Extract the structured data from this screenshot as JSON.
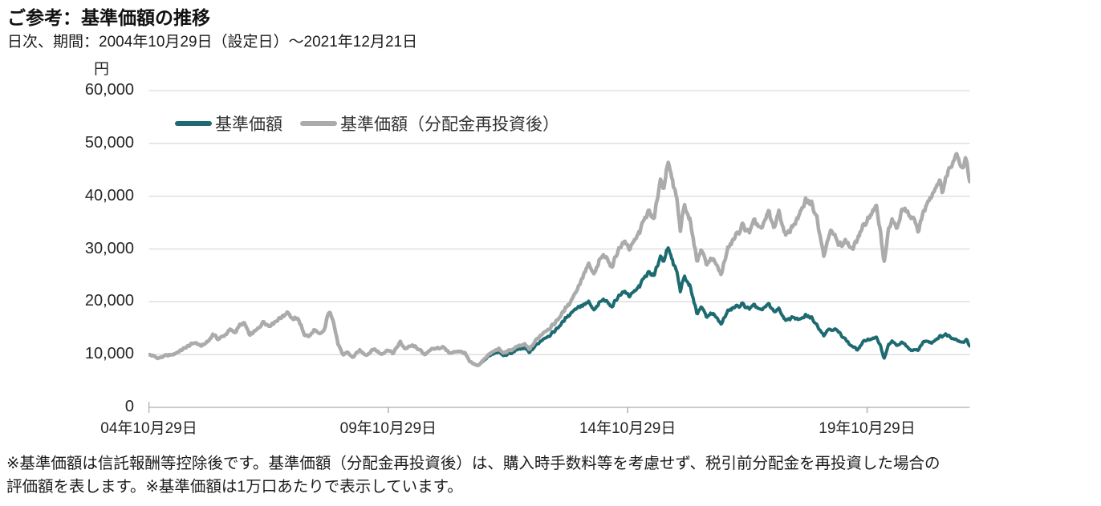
{
  "header": {
    "title": "ご参考：基準価額の推移",
    "subtitle": "日次、期間：2004年10月29日（設定日）～2021年12月21日"
  },
  "footnote": {
    "lines": [
      "※基準価額は信託報酬等控除後です。基準価額（分配金再投資後）は、購入時手数料等を考慮せず、税引前分配金を再投資した場合の",
      "評価額を表します。※基準価額は1万口あたりで表示しています。"
    ]
  },
  "chart_data": {
    "type": "line",
    "title": "ご参考：基準価額の推移",
    "subtitle": "日次、期間：2004年10月29日（設定日）～2021年12月21日",
    "unit_label": "円",
    "xlabel": "",
    "ylabel": "円",
    "ylim": [
      0,
      60000
    ],
    "y_ticks": [
      0,
      10000,
      20000,
      30000,
      40000,
      50000,
      60000
    ],
    "x_range_years_from_2004_10_29": [
      0,
      17.145
    ],
    "x_tick_positions_years": [
      0,
      5,
      10,
      15
    ],
    "x_tick_labels": [
      "04年10月29日",
      "09年10月29日",
      "14年10月29日",
      "19年10月29日"
    ],
    "grid": "horizontal",
    "legend_position": "inside-top-left",
    "colors": {
      "grid": "#dcdcdc",
      "axis": "#cccccc",
      "tick": "#b0b0b0"
    },
    "series": [
      {
        "name": "基準価額",
        "color": "#1d6b71",
        "stroke_width": 4,
        "keypoints": [
          [
            0,
            10000
          ],
          [
            0.1,
            9700
          ],
          [
            0.2,
            9300
          ],
          [
            0.35,
            9800
          ],
          [
            0.5,
            10000
          ],
          [
            0.65,
            10700
          ],
          [
            0.8,
            11500
          ],
          [
            0.96,
            12300
          ],
          [
            1.1,
            11600
          ],
          [
            1.25,
            12600
          ],
          [
            1.34,
            13900
          ],
          [
            1.45,
            12900
          ],
          [
            1.6,
            13800
          ],
          [
            1.7,
            14700
          ],
          [
            1.8,
            14200
          ],
          [
            1.9,
            15600
          ],
          [
            2.0,
            15900
          ],
          [
            2.1,
            13700
          ],
          [
            2.25,
            14600
          ],
          [
            2.4,
            16300
          ],
          [
            2.5,
            15400
          ],
          [
            2.6,
            16000
          ],
          [
            2.75,
            17000
          ],
          [
            2.82,
            17400
          ],
          [
            2.9,
            18200
          ],
          [
            3.0,
            16500
          ],
          [
            3.1,
            17100
          ],
          [
            3.25,
            13800
          ],
          [
            3.35,
            13400
          ],
          [
            3.45,
            14600
          ],
          [
            3.55,
            13900
          ],
          [
            3.65,
            14300
          ],
          [
            3.72,
            16800
          ],
          [
            3.78,
            18500
          ],
          [
            3.85,
            16400
          ],
          [
            3.95,
            12000
          ],
          [
            4.05,
            9900
          ],
          [
            4.15,
            10500
          ],
          [
            4.25,
            9400
          ],
          [
            4.4,
            10800
          ],
          [
            4.55,
            9900
          ],
          [
            4.7,
            11100
          ],
          [
            4.85,
            10100
          ],
          [
            5.0,
            10900
          ],
          [
            5.1,
            10200
          ],
          [
            5.25,
            12400
          ],
          [
            5.35,
            11100
          ],
          [
            5.5,
            11700
          ],
          [
            5.65,
            11000
          ],
          [
            5.75,
            9900
          ],
          [
            5.85,
            10800
          ],
          [
            6.0,
            11200
          ],
          [
            6.15,
            11400
          ],
          [
            6.3,
            10200
          ],
          [
            6.45,
            10700
          ],
          [
            6.6,
            10300
          ],
          [
            6.7,
            8600
          ],
          [
            6.8,
            8100
          ],
          [
            6.9,
            8000
          ],
          [
            7.0,
            9000
          ],
          [
            7.1,
            9700
          ],
          [
            7.2,
            10100
          ],
          [
            7.3,
            10600
          ],
          [
            7.4,
            9800
          ],
          [
            7.55,
            10200
          ],
          [
            7.7,
            10900
          ],
          [
            7.85,
            11200
          ],
          [
            7.95,
            10400
          ],
          [
            8.1,
            11900
          ],
          [
            8.25,
            13100
          ],
          [
            8.4,
            13800
          ],
          [
            8.5,
            14700
          ],
          [
            8.65,
            16200
          ],
          [
            8.8,
            17800
          ],
          [
            8.95,
            19000
          ],
          [
            9.1,
            19500
          ],
          [
            9.18,
            19900
          ],
          [
            9.3,
            18300
          ],
          [
            9.45,
            20200
          ],
          [
            9.55,
            20500
          ],
          [
            9.65,
            18900
          ],
          [
            9.8,
            21000
          ],
          [
            9.95,
            22000
          ],
          [
            10.05,
            21000
          ],
          [
            10.2,
            22500
          ],
          [
            10.35,
            24500
          ],
          [
            10.45,
            25600
          ],
          [
            10.55,
            24700
          ],
          [
            10.68,
            28700
          ],
          [
            10.75,
            28000
          ],
          [
            10.85,
            30000
          ],
          [
            10.95,
            27500
          ],
          [
            11.02,
            26000
          ],
          [
            11.1,
            22200
          ],
          [
            11.18,
            24800
          ],
          [
            11.3,
            23000
          ],
          [
            11.45,
            17800
          ],
          [
            11.55,
            19200
          ],
          [
            11.65,
            17000
          ],
          [
            11.75,
            17900
          ],
          [
            11.85,
            17000
          ],
          [
            11.95,
            15800
          ],
          [
            12.1,
            18300
          ],
          [
            12.25,
            19000
          ],
          [
            12.4,
            19500
          ],
          [
            12.55,
            18600
          ],
          [
            12.65,
            19300
          ],
          [
            12.8,
            18300
          ],
          [
            12.95,
            19700
          ],
          [
            13.05,
            18000
          ],
          [
            13.15,
            18800
          ],
          [
            13.3,
            16300
          ],
          [
            13.45,
            17200
          ],
          [
            13.6,
            16500
          ],
          [
            13.72,
            17400
          ],
          [
            13.85,
            16900
          ],
          [
            13.95,
            15600
          ],
          [
            14.1,
            13700
          ],
          [
            14.2,
            14900
          ],
          [
            14.35,
            14700
          ],
          [
            14.5,
            13400
          ],
          [
            14.65,
            11800
          ],
          [
            14.8,
            10900
          ],
          [
            14.95,
            12700
          ],
          [
            15.1,
            13000
          ],
          [
            15.2,
            13100
          ],
          [
            15.28,
            11800
          ],
          [
            15.35,
            9200
          ],
          [
            15.45,
            11800
          ],
          [
            15.52,
            12600
          ],
          [
            15.62,
            11600
          ],
          [
            15.75,
            12400
          ],
          [
            15.85,
            11200
          ],
          [
            15.95,
            10700
          ],
          [
            16.07,
            11000
          ],
          [
            16.2,
            12600
          ],
          [
            16.35,
            12300
          ],
          [
            16.5,
            13300
          ],
          [
            16.65,
            13800
          ],
          [
            16.78,
            13200
          ],
          [
            16.88,
            12800
          ],
          [
            17.0,
            12300
          ],
          [
            17.08,
            12800
          ],
          [
            17.145,
            11700
          ]
        ]
      },
      {
        "name": "基準価額（分配金再投資後）",
        "color": "#ababab",
        "stroke_width": 4.5,
        "keypoints": [
          [
            0,
            10000
          ],
          [
            0.1,
            9700
          ],
          [
            0.2,
            9300
          ],
          [
            0.35,
            9800
          ],
          [
            0.5,
            10000
          ],
          [
            0.65,
            10700
          ],
          [
            0.8,
            11500
          ],
          [
            0.96,
            12300
          ],
          [
            1.1,
            11600
          ],
          [
            1.25,
            12600
          ],
          [
            1.34,
            13900
          ],
          [
            1.45,
            12900
          ],
          [
            1.6,
            13800
          ],
          [
            1.7,
            14700
          ],
          [
            1.8,
            14200
          ],
          [
            1.9,
            15600
          ],
          [
            2.0,
            15900
          ],
          [
            2.1,
            13700
          ],
          [
            2.25,
            14600
          ],
          [
            2.4,
            16300
          ],
          [
            2.5,
            15400
          ],
          [
            2.6,
            16000
          ],
          [
            2.75,
            17000
          ],
          [
            2.82,
            17400
          ],
          [
            2.9,
            18200
          ],
          [
            3.0,
            16500
          ],
          [
            3.1,
            17100
          ],
          [
            3.25,
            13800
          ],
          [
            3.35,
            13400
          ],
          [
            3.45,
            14600
          ],
          [
            3.55,
            13900
          ],
          [
            3.65,
            14300
          ],
          [
            3.72,
            16800
          ],
          [
            3.78,
            18500
          ],
          [
            3.85,
            16400
          ],
          [
            3.95,
            12000
          ],
          [
            4.05,
            9900
          ],
          [
            4.15,
            10500
          ],
          [
            4.25,
            9400
          ],
          [
            4.4,
            10800
          ],
          [
            4.55,
            9900
          ],
          [
            4.7,
            11100
          ],
          [
            4.85,
            10100
          ],
          [
            5.0,
            10900
          ],
          [
            5.1,
            10200
          ],
          [
            5.25,
            12400
          ],
          [
            5.35,
            11100
          ],
          [
            5.5,
            11700
          ],
          [
            5.65,
            11000
          ],
          [
            5.75,
            9900
          ],
          [
            5.85,
            10800
          ],
          [
            6.0,
            11200
          ],
          [
            6.15,
            11400
          ],
          [
            6.3,
            10200
          ],
          [
            6.45,
            10700
          ],
          [
            6.6,
            10300
          ],
          [
            6.7,
            8600
          ],
          [
            6.8,
            8100
          ],
          [
            6.9,
            8000
          ],
          [
            7.0,
            9200
          ],
          [
            7.1,
            10000
          ],
          [
            7.2,
            10600
          ],
          [
            7.3,
            11100
          ],
          [
            7.4,
            10300
          ],
          [
            7.55,
            10800
          ],
          [
            7.7,
            11500
          ],
          [
            7.85,
            11900
          ],
          [
            7.95,
            11000
          ],
          [
            8.1,
            12900
          ],
          [
            8.25,
            14300
          ],
          [
            8.4,
            15200
          ],
          [
            8.5,
            16200
          ],
          [
            8.65,
            18000
          ],
          [
            8.8,
            20000
          ],
          [
            8.95,
            22500
          ],
          [
            9.1,
            25500
          ],
          [
            9.18,
            27000
          ],
          [
            9.3,
            25100
          ],
          [
            9.45,
            28500
          ],
          [
            9.55,
            28900
          ],
          [
            9.65,
            26300
          ],
          [
            9.8,
            29800
          ],
          [
            9.95,
            31500
          ],
          [
            10.05,
            29900
          ],
          [
            10.2,
            32500
          ],
          [
            10.35,
            35500
          ],
          [
            10.45,
            37200
          ],
          [
            10.55,
            35300
          ],
          [
            10.68,
            43300
          ],
          [
            10.75,
            41800
          ],
          [
            10.85,
            46200
          ],
          [
            10.95,
            42500
          ],
          [
            11.02,
            40000
          ],
          [
            11.1,
            33800
          ],
          [
            11.18,
            38300
          ],
          [
            11.3,
            35500
          ],
          [
            11.45,
            27800
          ],
          [
            11.55,
            30100
          ],
          [
            11.65,
            26900
          ],
          [
            11.75,
            28300
          ],
          [
            11.85,
            27000
          ],
          [
            11.95,
            25200
          ],
          [
            12.1,
            30200
          ],
          [
            12.25,
            32300
          ],
          [
            12.4,
            34400
          ],
          [
            12.55,
            33100
          ],
          [
            12.65,
            35300
          ],
          [
            12.8,
            33600
          ],
          [
            12.95,
            37400
          ],
          [
            13.05,
            33600
          ],
          [
            13.15,
            37300
          ],
          [
            13.3,
            32300
          ],
          [
            13.45,
            34500
          ],
          [
            13.6,
            36500
          ],
          [
            13.72,
            39200
          ],
          [
            13.85,
            38500
          ],
          [
            13.95,
            36000
          ],
          [
            14.1,
            28900
          ],
          [
            14.25,
            34200
          ],
          [
            14.4,
            30700
          ],
          [
            14.55,
            31500
          ],
          [
            14.7,
            29900
          ],
          [
            14.85,
            33000
          ],
          [
            15.0,
            35500
          ],
          [
            15.1,
            36900
          ],
          [
            15.2,
            37700
          ],
          [
            15.28,
            33500
          ],
          [
            15.35,
            27400
          ],
          [
            15.45,
            33500
          ],
          [
            15.52,
            35700
          ],
          [
            15.62,
            33500
          ],
          [
            15.75,
            38000
          ],
          [
            15.85,
            36500
          ],
          [
            15.95,
            35800
          ],
          [
            16.07,
            33700
          ],
          [
            16.2,
            37500
          ],
          [
            16.3,
            39500
          ],
          [
            16.42,
            41500
          ],
          [
            16.5,
            43000
          ],
          [
            16.58,
            41000
          ],
          [
            16.68,
            44500
          ],
          [
            16.78,
            46500
          ],
          [
            16.88,
            48300
          ],
          [
            16.95,
            46000
          ],
          [
            17.0,
            45200
          ],
          [
            17.05,
            47300
          ],
          [
            17.1,
            45500
          ],
          [
            17.145,
            43000
          ]
        ]
      }
    ]
  }
}
